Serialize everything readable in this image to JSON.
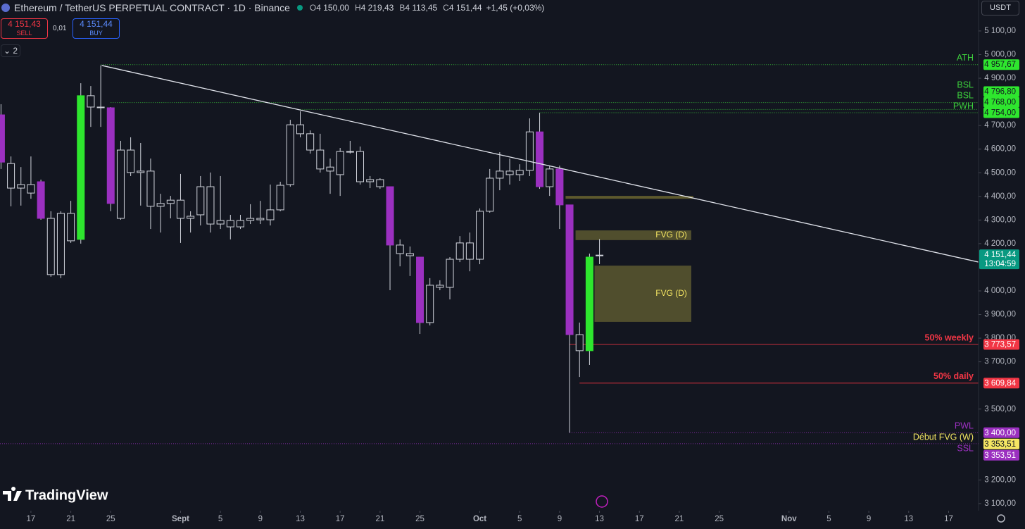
{
  "header": {
    "title": "Ethereum / TetherUS PERPETUAL CONTRACT · 1D · Binance",
    "ohlc": [
      {
        "key": "O",
        "value": "4 150,00"
      },
      {
        "key": "H",
        "value": "4 219,43"
      },
      {
        "key": "B",
        "value": "4 113,45"
      },
      {
        "key": "C",
        "value": "4 151,44"
      }
    ],
    "change": "+1,45 (+0,03%)"
  },
  "toolbar": {
    "sell_price": "4 151,43",
    "sell": "SELL",
    "spread": "0,01",
    "buy_price": "4 151,44",
    "buy": "BUY",
    "layers": "2",
    "currency": "USDT",
    "watermark": "TradingView"
  },
  "chart_data": {
    "type": "candlestick",
    "x": [
      14,
      15,
      16,
      17,
      18,
      19,
      20,
      21,
      22,
      23,
      24,
      25,
      26,
      27,
      28,
      29,
      30,
      31,
      32,
      33,
      34,
      35,
      36,
      37,
      38,
      39,
      40,
      41,
      42,
      43,
      44,
      45,
      46,
      47,
      48,
      49,
      50,
      51,
      52,
      53,
      54,
      55,
      56,
      57,
      58,
      59,
      60,
      61,
      62,
      63,
      64,
      65,
      66,
      67,
      68,
      69,
      70,
      71,
      72,
      73,
      74
    ],
    "open": [
      4745,
      4539,
      4435,
      4450,
      4462,
      4307,
      4069,
      4328,
      4218,
      4778,
      4778,
      4775,
      4307,
      4596,
      4501,
      4507,
      4358,
      4370,
      4384,
      4307,
      4322,
      4441,
      4283,
      4298,
      4271,
      4298,
      4307,
      4301,
      4343,
      4450,
      4703,
      4665,
      4596,
      4524,
      4492,
      4590,
      4590,
      4462,
      4471,
      4441,
      4194,
      4158,
      4143,
      3866,
      4024,
      4015,
      4134,
      4203,
      4134,
      4337,
      4477,
      4507,
      4492,
      4510,
      4673,
      4441,
      4516,
      4364,
      3815,
      3747,
      4150
    ],
    "high": [
      4790,
      4569,
      4524,
      4569,
      4471,
      4337,
      4337,
      4381,
      4879,
      4867,
      4954,
      4778,
      4635,
      4650,
      4626,
      4560,
      4411,
      4402,
      4495,
      4337,
      4486,
      4501,
      4486,
      4322,
      4322,
      4367,
      4381,
      4450,
      4462,
      4724,
      4760,
      4679,
      4665,
      4560,
      4605,
      4635,
      4611,
      4486,
      4477,
      4441,
      4218,
      4188,
      4143,
      4054,
      4045,
      4143,
      4232,
      4247,
      4349,
      4516,
      4587,
      4560,
      4536,
      4730,
      4754,
      4530,
      4530,
      4364,
      3866,
      4158,
      4219.43
    ],
    "low": [
      4516,
      4358,
      4361,
      4390,
      4301,
      4060,
      4054,
      4203,
      4200,
      4694,
      4694,
      4337,
      4301,
      4486,
      4361,
      4262,
      4247,
      4307,
      4203,
      4247,
      4277,
      4247,
      4262,
      4218,
      4262,
      4283,
      4283,
      4277,
      4337,
      4441,
      4650,
      4581,
      4501,
      4411,
      4402,
      4581,
      4450,
      4435,
      4432,
      4003,
      4104,
      4063,
      3818,
      3854,
      4003,
      3964,
      4122,
      4083,
      4113,
      4331,
      4426,
      4450,
      4465,
      4486,
      4432,
      4402,
      4262,
      3400,
      3636,
      3687,
      4113.45
    ],
    "close": [
      4545,
      4435,
      4450,
      4414,
      4307,
      4069,
      4328,
      4212,
      4826,
      4826,
      4775,
      4370,
      4596,
      4501,
      4507,
      4358,
      4370,
      4384,
      4307,
      4316,
      4441,
      4283,
      4298,
      4271,
      4298,
      4307,
      4301,
      4343,
      4447,
      4703,
      4665,
      4596,
      4516,
      4507,
      4590,
      4590,
      4462,
      4471,
      4441,
      4194,
      4158,
      4149,
      3866,
      4024,
      4015,
      4134,
      4203,
      4134,
      4337,
      4477,
      4507,
      4492,
      4510,
      4673,
      4441,
      4516,
      4364,
      3815,
      3747,
      4143,
      4151.44
    ],
    "body_colors": [
      "#9b30c0",
      "#131620",
      "#131620",
      "#131620",
      "#9b30c0",
      "#131620",
      "#131620",
      "#131620",
      "#2ee62e",
      "#131620",
      "#131620",
      "#9b30c0",
      "#131620",
      "#131620",
      "#131620",
      "#131620",
      "#131620",
      "#131620",
      "#131620",
      "#131620",
      "#131620",
      "#131620",
      "#131620",
      "#131620",
      "#131620",
      "#131620",
      "#131620",
      "#131620",
      "#131620",
      "#131620",
      "#131620",
      "#131620",
      "#131620",
      "#131620",
      "#131620",
      "#131620",
      "#131620",
      "#131620",
      "#131620",
      "#9b30c0",
      "#131620",
      "#131620",
      "#9b30c0",
      "#131620",
      "#131620",
      "#131620",
      "#131620",
      "#131620",
      "#131620",
      "#131620",
      "#131620",
      "#131620",
      "#131620",
      "#131620",
      "#9b30c0",
      "#131620",
      "#9b30c0",
      "#9b30c0",
      "#131620",
      "#2ee62e",
      "#131620"
    ],
    "outline_color": "#d1d4dc",
    "xlim": [
      13.9,
      112
    ],
    "xticks": [
      {
        "value": 17,
        "label": "17"
      },
      {
        "value": 21,
        "label": "21"
      },
      {
        "value": 25,
        "label": "25"
      },
      {
        "value": 32,
        "label": "Sept"
      },
      {
        "value": 36,
        "label": "5"
      },
      {
        "value": 40,
        "label": "9"
      },
      {
        "value": 44,
        "label": "13"
      },
      {
        "value": 48,
        "label": "17"
      },
      {
        "value": 52,
        "label": "21"
      },
      {
        "value": 56,
        "label": "25"
      },
      {
        "value": 62,
        "label": "Oct"
      },
      {
        "value": 66,
        "label": "5"
      },
      {
        "value": 70,
        "label": "9"
      },
      {
        "value": 74,
        "label": "13"
      },
      {
        "value": 78,
        "label": "17"
      },
      {
        "value": 82,
        "label": "21"
      },
      {
        "value": 86,
        "label": "25"
      },
      {
        "value": 93,
        "label": "Nov"
      },
      {
        "value": 97,
        "label": "5"
      },
      {
        "value": 101,
        "label": "9"
      },
      {
        "value": 105,
        "label": "13"
      },
      {
        "value": 109,
        "label": "17"
      }
    ],
    "ylim": [
      3070,
      5231
    ],
    "yticks": [
      {
        "value": 5100,
        "label": "5 100,00"
      },
      {
        "value": 5000,
        "label": "5 000,00"
      },
      {
        "value": 4900,
        "label": "4 900,00"
      },
      {
        "value": 4700,
        "label": "4 700,00"
      },
      {
        "value": 4600,
        "label": "4 600,00"
      },
      {
        "value": 4500,
        "label": "4 500,00"
      },
      {
        "value": 4400,
        "label": "4 400,00"
      },
      {
        "value": 4300,
        "label": "4 300,00"
      },
      {
        "value": 4200,
        "label": "4 200,00"
      },
      {
        "value": 4000,
        "label": "4 000,00"
      },
      {
        "value": 3900,
        "label": "3 900,00"
      },
      {
        "value": 3800,
        "label": "3 800,00"
      },
      {
        "value": 3700,
        "label": "3 700,00"
      },
      {
        "value": 3500,
        "label": "3 500,00"
      },
      {
        "value": 3200,
        "label": "3 200,00"
      },
      {
        "value": 3100,
        "label": "3 100,00"
      }
    ],
    "trendline": {
      "x": [
        24.1,
        112
      ],
      "y": [
        4954,
        4122
      ],
      "color": "#e0e3eb"
    },
    "levels": [
      {
        "name": "ATH",
        "price": 4957.67,
        "price_label": "4 957,67",
        "start": 24,
        "style": "dotted",
        "color": "#3ccf3c",
        "badge_color": "#2ee62e",
        "badge_text": "#131620"
      },
      {
        "name": "BSL",
        "price": 4796.8,
        "price_label": "4 796,80",
        "start": 25,
        "style": "dotted",
        "color": "#3ccf3c",
        "badge_color": "#2ee62e",
        "badge_text": "#131620"
      },
      {
        "name": "BSL",
        "price": 4768,
        "price_label": "4 768,00",
        "start": 44,
        "style": "dotted",
        "color": "#3ccf3c",
        "badge_color": "#2ee62e",
        "badge_text": "#131620"
      },
      {
        "name": "PWH",
        "price": 4754,
        "price_label": "4 754,00",
        "start": 68,
        "style": "dotted",
        "color": "#3ccf3c",
        "badge_color": "#2ee62e",
        "badge_text": "#131620"
      },
      {
        "name": "50% weekly",
        "price": 3773.57,
        "price_label": "3 773,57",
        "start": 71,
        "style": "solid",
        "color": "#f23645",
        "badge_color": "#f23645",
        "badge_text": "#ffffff"
      },
      {
        "name": "50% daily",
        "price": 3609.84,
        "price_label": "3 609,84",
        "start": 72,
        "style": "solid",
        "color": "#f23645",
        "badge_color": "#f23645",
        "badge_text": "#ffffff"
      },
      {
        "name": "PWL",
        "price": 3400,
        "price_label": "3 400,00",
        "start": 71,
        "style": "dotted",
        "color": "#9b30c0",
        "badge_color": "#9b30c0",
        "badge_text": "#ffffff"
      },
      {
        "name": "Début FVG (W)",
        "price": 3353.51,
        "price_label": "3 353,51",
        "start": 71,
        "style": "none",
        "color": "#f5e663",
        "badge_color": "#f5e663",
        "badge_text": "#131620"
      },
      {
        "name": "SSL",
        "price": 3353.51,
        "price_label": "3 353,51",
        "start": 13.9,
        "style": "dotted",
        "color": "#9b30c0",
        "badge_color": "#9b30c0",
        "badge_text": "#ffffff"
      }
    ],
    "zones": [
      {
        "x0": 70.6,
        "x1": 83.4,
        "top": 4402,
        "bottom": 4390,
        "color": "#6b6530"
      },
      {
        "x0": 71.6,
        "x1": 83.2,
        "top": 4256,
        "bottom": 4215,
        "color": "#5c5830",
        "label": "FVG (D)"
      },
      {
        "x0": 73.5,
        "x1": 83.2,
        "top": 4107,
        "bottom": 3869,
        "color": "#5c5830",
        "label": "FVG (D)"
      }
    ],
    "last_price": {
      "price": 4151.44,
      "label": "4 151,44",
      "countdown": "13:04:59",
      "color": "#089981"
    }
  }
}
